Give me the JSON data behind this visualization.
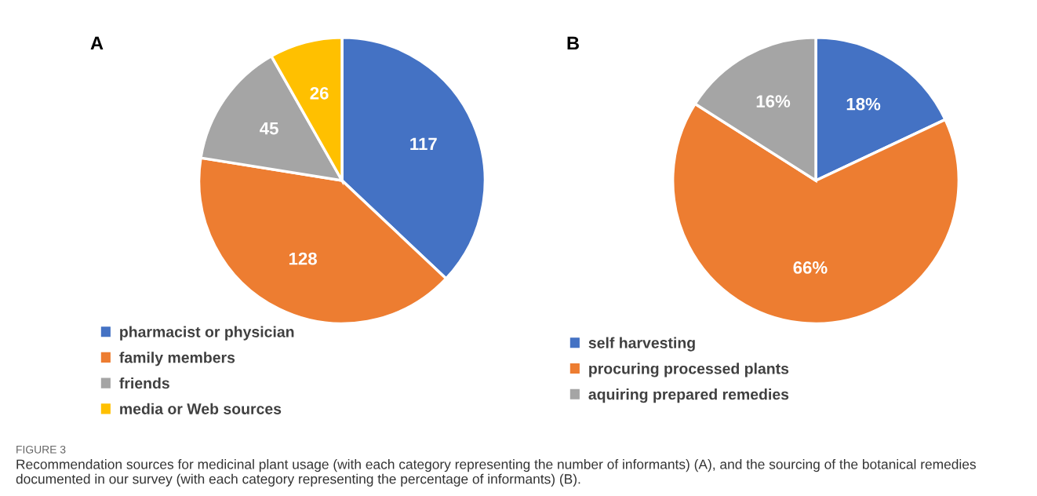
{
  "chart_data": [
    {
      "type": "pie",
      "title": "A",
      "categories": [
        "pharmacist or physician",
        "family members",
        "friends",
        "media or Web sources"
      ],
      "values": [
        117,
        128,
        45,
        26
      ],
      "colors": [
        "#4472c4",
        "#ed7d31",
        "#a5a5a5",
        "#ffc000"
      ],
      "data_labels": true,
      "legend": "bottom",
      "annotations": [
        "FIGURE 3",
        "Recommendation sources for medicinal plant usage (with each category representing the number of informants) (A), and the sourcing of the botanical remedies documented in our survey (with each category representing the percentage of informants) (B)."
      ]
    },
    {
      "type": "pie",
      "title": "B",
      "categories": [
        "self harvesting",
        "procuring processed plants",
        "aquiring prepared remedies"
      ],
      "values": [
        18,
        66,
        16
      ],
      "colors": [
        "#4472c4",
        "#ed7d31",
        "#a5a5a5"
      ],
      "value_labels": [
        "18%",
        "66%",
        "16%"
      ],
      "legend": "bottom"
    }
  ]
}
